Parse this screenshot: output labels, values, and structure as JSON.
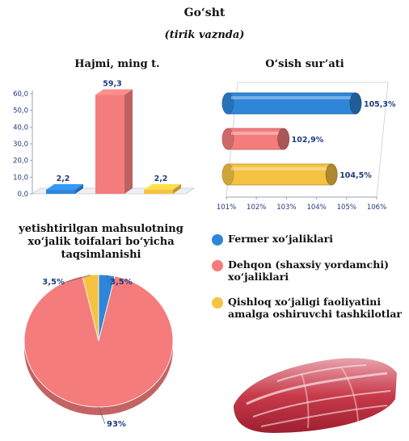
{
  "header": {
    "title": "Go‘sht",
    "subtitle": "(tirik vaznda)"
  },
  "colors": {
    "fermer": "#2f86d8",
    "dehqon": "#f47c7c",
    "qishloq": "#f5c242",
    "axis_text": "#1f3b82"
  },
  "chart_data": [
    {
      "type": "bar",
      "title": "Hajmi, ming t.",
      "categories": [
        "Fermer xo‘jaliklari",
        "Dehqon (shaxsiy yordamchi) xo‘jaliklari",
        "Qishloq xo‘jaligi faoliyatini amalga oshiruvchi tashkilotlar"
      ],
      "values": [
        2.2,
        59.3,
        2.2
      ],
      "value_labels": [
        "2,2",
        "59,3",
        "2,2"
      ],
      "ylim": [
        0,
        60
      ],
      "yticks": [
        "0,0",
        "10,0",
        "20,0",
        "30,0",
        "40,0",
        "50,0",
        "60,0"
      ],
      "grid": false
    },
    {
      "type": "bar",
      "orientation": "horizontal",
      "title": "O‘sish sur’ati",
      "categories": [
        "Fermer xo‘jaliklari",
        "Dehqon (shaxsiy yordamchi) xo‘jaliklari",
        "Qishloq xo‘jaligi faoliyatini amalga oshiruvchi tashkilotlar"
      ],
      "values": [
        105.3,
        102.9,
        104.5
      ],
      "value_labels": [
        "105,3%",
        "102,9%",
        "104,5%"
      ],
      "xlim": [
        101,
        106
      ],
      "xticks": [
        "101%",
        "102%",
        "103%",
        "104%",
        "105%",
        "106%"
      ],
      "grid": false
    },
    {
      "type": "pie",
      "title": "yetishtirilgan mahsulotning xo‘jalik toifalari bo‘yicha taqsimlanishi",
      "categories": [
        "Fermer xo‘jaliklari",
        "Dehqon (shaxsiy yordamchi) xo‘jaliklari",
        "Qishloq xo‘jaligi faoliyatini amalga oshiruvchi tashkilotlar"
      ],
      "values": [
        3.5,
        93,
        3.5
      ],
      "value_labels": [
        "3,5%",
        "93%",
        "3,5%"
      ]
    }
  ],
  "legend": {
    "items": [
      {
        "label": "Fermer xo‘jaliklari",
        "color_key": "fermer"
      },
      {
        "label": "Dehqon (shaxsiy yordamchi) xo‘jaliklari",
        "color_key": "dehqon"
      },
      {
        "label": "Qishloq xo‘jaligi faoliyatini amalga oshiruvchi tashkilotlar",
        "color_key": "qishloq"
      }
    ]
  },
  "decor": {
    "image": "meat-icon"
  }
}
